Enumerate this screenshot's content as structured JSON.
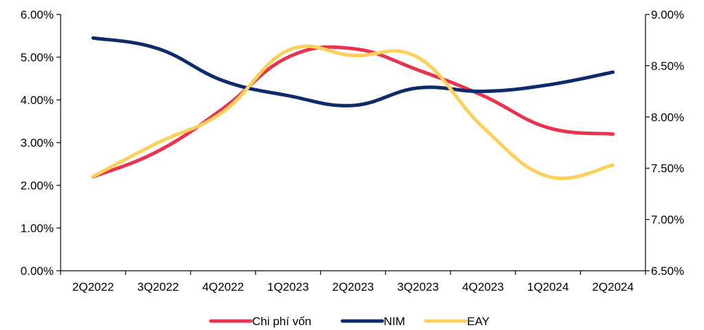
{
  "chart_data": {
    "type": "line",
    "categories": [
      "2Q2022",
      "3Q2022",
      "4Q2022",
      "1Q2023",
      "2Q2023",
      "3Q2023",
      "4Q2023",
      "1Q2024",
      "2Q2024"
    ],
    "y_left": {
      "ylim": [
        0,
        6
      ],
      "ticks": [
        0,
        1,
        2,
        3,
        4,
        5,
        6
      ],
      "tick_labels": [
        "0.00%",
        "1.00%",
        "2.00%",
        "3.00%",
        "4.00%",
        "5.00%",
        "6.00%"
      ]
    },
    "y_right": {
      "ylim": [
        6.5,
        9.0
      ],
      "ticks": [
        6.5,
        7.0,
        7.5,
        8.0,
        8.5,
        9.0
      ],
      "tick_labels": [
        "6.50%",
        "7.00%",
        "7.50%",
        "8.00%",
        "8.50%",
        "9.00%"
      ]
    },
    "series": [
      {
        "name": "Chi phí vốn",
        "axis": "left",
        "color": "#e8344e",
        "values": [
          2.2,
          2.8,
          3.8,
          5.0,
          5.2,
          4.7,
          4.1,
          3.35,
          3.2
        ]
      },
      {
        "name": "NIM",
        "axis": "left",
        "color": "#0d2a6b",
        "values": [
          5.45,
          5.2,
          4.45,
          4.1,
          3.87,
          4.28,
          4.2,
          4.35,
          4.65
        ]
      },
      {
        "name": "EAY",
        "axis": "right",
        "color": "#fdd05b",
        "values": [
          7.42,
          7.75,
          8.05,
          8.65,
          8.6,
          8.58,
          7.9,
          7.42,
          7.53
        ]
      }
    ],
    "legend_position": "bottom",
    "grid": false
  }
}
